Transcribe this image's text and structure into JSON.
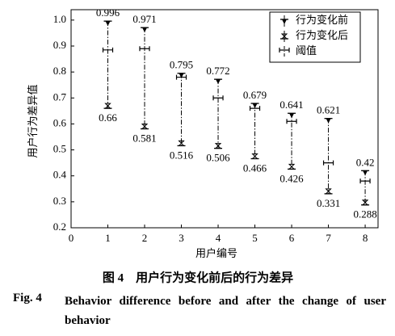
{
  "chart_data": {
    "type": "errorbar",
    "x_label": "用户编号",
    "y_label": "用户行为差异值",
    "x": [
      1,
      2,
      3,
      4,
      5,
      6,
      7,
      8
    ],
    "series": [
      {
        "name": "行为变化前",
        "color": "#000000",
        "values": [
          0.996,
          0.971,
          0.795,
          0.772,
          0.679,
          0.641,
          0.621,
          0.42
        ]
      },
      {
        "name": "行为变化后",
        "color": "#000000",
        "values": [
          0.66,
          0.581,
          0.516,
          0.506,
          0.466,
          0.426,
          0.331,
          0.288
        ]
      },
      {
        "name": "阈值",
        "color": "#000000",
        "values": [
          0.885,
          0.89,
          0.78,
          0.7,
          0.66,
          0.61,
          0.45,
          0.38
        ]
      }
    ],
    "xlim": [
      0,
      8.35
    ],
    "xticks": [
      0,
      1,
      2,
      3,
      4,
      5,
      6,
      7,
      8
    ],
    "ylim": [
      0.2,
      1.04
    ],
    "yticks": [
      0.2,
      0.3,
      0.4,
      0.5,
      0.6,
      0.7,
      0.8,
      0.9,
      {
        "value": 1,
        "label": "1.0"
      }
    ],
    "legend": "top-right",
    "caption_cn": "图 4　用户行为变化前后的行为差异",
    "caption_label": "Fig. 4",
    "caption_en": "Behavior difference before and after the change of user behavior"
  }
}
